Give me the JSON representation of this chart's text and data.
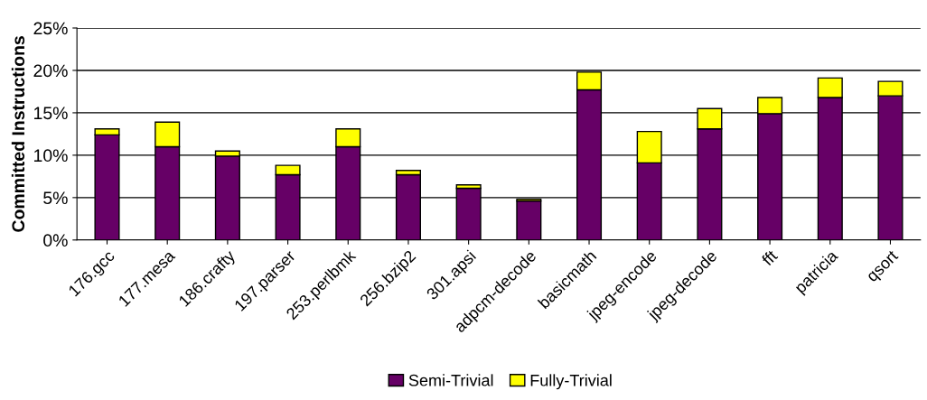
{
  "chart_data": {
    "type": "bar",
    "stacked": true,
    "ylabel": "Committed Instructions",
    "categories": [
      "176.gcc",
      "177.mesa",
      "186.crafty",
      "197.parser",
      "253.perlbmk",
      "256.bzip2",
      "301.apsi",
      "adpcm-decode",
      "basicmath",
      "jpeg-encode",
      "jpeg-decode",
      "fft",
      "patricia",
      "qsort"
    ],
    "series": [
      {
        "name": "Semi-Trivial",
        "color": "#660066",
        "values": [
          12.4,
          11.0,
          9.9,
          7.7,
          11.0,
          7.7,
          6.1,
          4.6,
          17.7,
          9.1,
          13.1,
          14.9,
          16.8,
          17.0
        ]
      },
      {
        "name": "Fully-Trivial",
        "color": "#ffff00",
        "values": [
          0.7,
          2.9,
          0.6,
          1.1,
          2.1,
          0.5,
          0.4,
          0.2,
          2.1,
          3.7,
          2.4,
          1.9,
          2.3,
          1.7
        ]
      }
    ],
    "ylim": [
      0,
      25
    ],
    "yticks": [
      {
        "value": 0,
        "label": "0%"
      },
      {
        "value": 5,
        "label": "5%"
      },
      {
        "value": 10,
        "label": "10%"
      },
      {
        "value": 15,
        "label": "15%"
      },
      {
        "value": 20,
        "label": "20%"
      },
      {
        "value": 25,
        "label": "25%"
      }
    ],
    "grid": "y",
    "legend": "bottom"
  }
}
